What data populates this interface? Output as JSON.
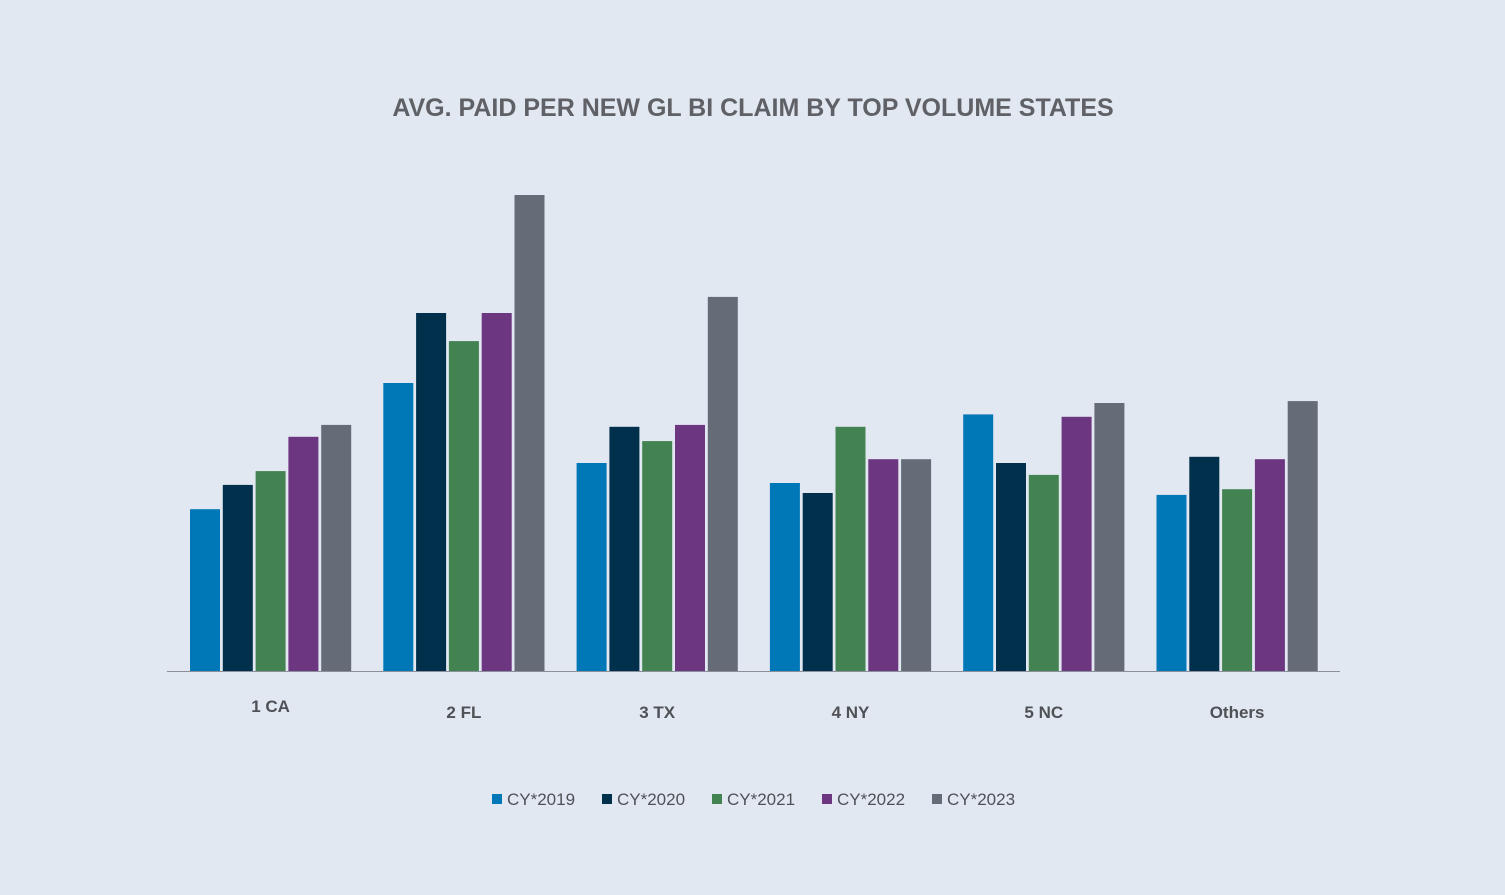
{
  "chart_data": {
    "type": "bar",
    "title": "AVG. PAID PER NEW GL BI CLAIM BY TOP VOLUME STATES",
    "xlabel": "",
    "ylabel": "",
    "categories": [
      "1 CA",
      "2 FL",
      "3 TX",
      "4 NY",
      "5 NC",
      "Others"
    ],
    "ylim": [
      0,
      100
    ],
    "grid": false,
    "legend_position": "bottom-center",
    "series": [
      {
        "name": "CY*2019",
        "color": "#0078b7",
        "values": [
          34.0,
          60.5,
          43.7,
          39.5,
          53.9,
          37.0
        ]
      },
      {
        "name": "CY*2020",
        "color": "#00304b",
        "values": [
          39.1,
          75.2,
          51.3,
          37.4,
          43.7,
          45.0
        ]
      },
      {
        "name": "CY*2021",
        "color": "#438352",
        "values": [
          42.0,
          69.3,
          48.3,
          51.3,
          41.2,
          38.2
        ]
      },
      {
        "name": "CY*2022",
        "color": "#6d3680",
        "values": [
          49.2,
          75.2,
          51.7,
          44.5,
          53.4,
          44.5
        ]
      },
      {
        "name": "CY*2023",
        "color": "#666b78",
        "values": [
          51.7,
          100.0,
          78.6,
          44.5,
          56.3,
          56.7
        ]
      }
    ]
  }
}
